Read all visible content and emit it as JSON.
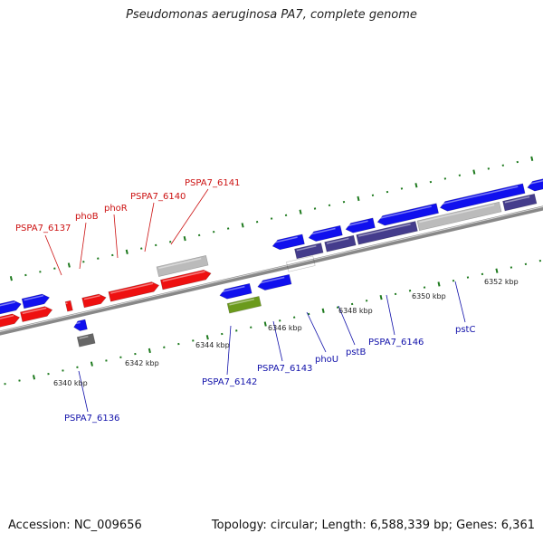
{
  "title": "Pseudomonas aeruginosa PA7, complete genome",
  "footer": {
    "accession": "Accession: NC_009656",
    "summary": "Topology: circular; Length: 6,588,339 bp; Genes: 6,361"
  },
  "colors": {
    "forward_gene": "#1010ee",
    "reverse_gene": "#ee1010",
    "gray_feature": "#bbbbbb",
    "dark_gray_feature": "#666666",
    "purple_feature": "#443c8c",
    "green_feature": "#6b9a1c",
    "backbone": "#888888",
    "tick_mark": "#1e7a1e",
    "label_forward": "#cc1111",
    "label_reverse": "#1111aa"
  },
  "ticks": {
    "upper_labels": [
      "6340 kbp",
      "6342 kbp",
      "6344 kbp",
      "6346 kbp",
      "6348 kbp",
      "6350 kbp",
      "6352 kbp"
    ]
  },
  "labels": {
    "top": [
      "PSPA7_6137",
      "phoB",
      "phoR",
      "PSPA7_6140",
      "PSPA7_6141"
    ],
    "bottom": [
      "PSPA7_6136",
      "PSPA7_6142",
      "PSPA7_6143",
      "phoU",
      "pstB",
      "PSPA7_6146",
      "pstC"
    ]
  }
}
